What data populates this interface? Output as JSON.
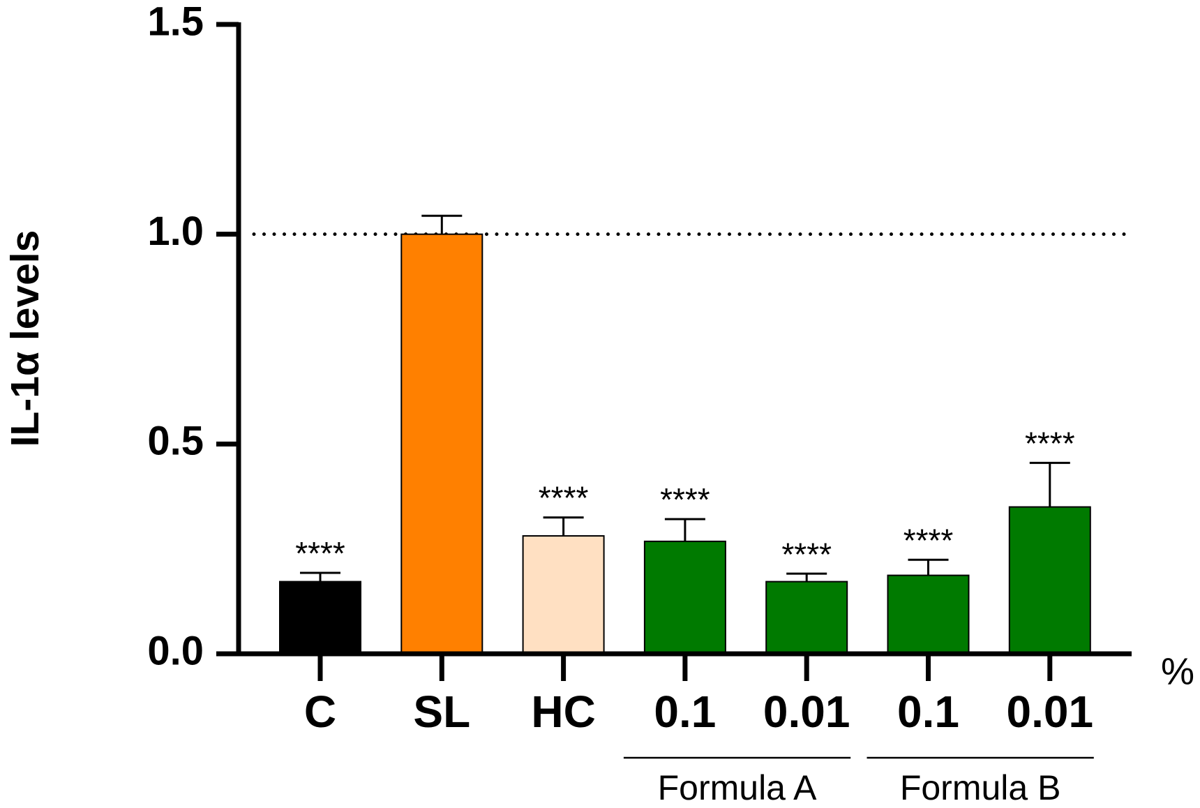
{
  "chart_data": {
    "type": "bar",
    "y_label": "IL-1α levels",
    "x_unit_label": "%",
    "categories": [
      "C",
      "SL",
      "HC",
      "0.1",
      "0.01",
      "0.1",
      "0.01"
    ],
    "values": [
      0.172,
      1.0,
      0.281,
      0.268,
      0.172,
      0.187,
      0.35
    ],
    "errors": [
      0.021,
      0.044,
      0.044,
      0.053,
      0.019,
      0.037,
      0.105
    ],
    "colors": [
      "#000000",
      "#ff8000",
      "#ffe0c2",
      "#007a00",
      "#007a00",
      "#007a00",
      "#007a00"
    ],
    "annotations": [
      "****",
      null,
      "****",
      "****",
      "****",
      "****",
      "****"
    ],
    "groups": [
      {
        "name": "Formula A",
        "categories": [
          3,
          4
        ]
      },
      {
        "name": "Formula B",
        "categories": [
          5,
          6
        ]
      }
    ],
    "reference_line": 1,
    "ylim": [
      0,
      1.5
    ],
    "yticks": [
      {
        "value": 0,
        "label": "0.0"
      },
      {
        "value": 0.5,
        "label": "0.5"
      },
      {
        "value": 1,
        "label": "1.0"
      },
      {
        "value": 1.5,
        "label": "1.5"
      }
    ]
  }
}
